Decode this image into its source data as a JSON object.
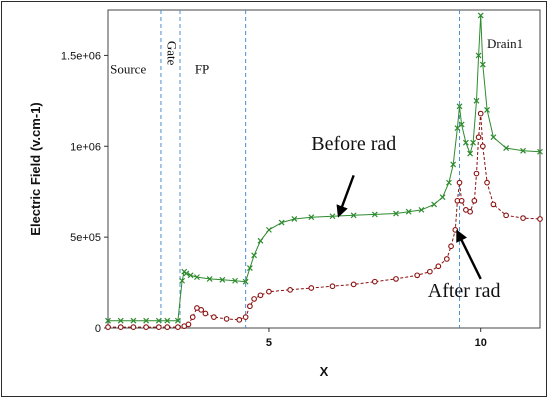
{
  "chart_data": {
    "type": "line",
    "xlabel": "X",
    "ylabel": "Electric Field (v.cm-1)",
    "xlim": [
      1.2,
      11.4
    ],
    "ylim": [
      0,
      1750000
    ],
    "x_ticks": [
      {
        "v": 5,
        "label": "5"
      },
      {
        "v": 10,
        "label": "10"
      }
    ],
    "y_ticks": [
      {
        "v": 0,
        "label": "0"
      },
      {
        "v": 500000,
        "label": "5e+05"
      },
      {
        "v": 1000000,
        "label": "1e+06"
      },
      {
        "v": 1500000,
        "label": "1.5e+06"
      }
    ],
    "vlines": [
      2.45,
      2.9,
      4.45,
      9.5
    ],
    "region_labels": [
      {
        "text": "Source",
        "x": 1.25,
        "y": 1400000,
        "rotate": false
      },
      {
        "text": "Gate",
        "x": 2.6,
        "y": 1580000,
        "rotate": true
      },
      {
        "text": "FP",
        "x": 3.25,
        "y": 1400000,
        "rotate": false
      },
      {
        "text": "Drain1",
        "x": 10.15,
        "y": 1540000,
        "rotate": false
      }
    ],
    "annotations": [
      {
        "text": "Before rad",
        "x": 6.0,
        "y": 980000,
        "arrow_from": [
          7.0,
          840000
        ],
        "arrow_to": [
          6.65,
          620000
        ]
      },
      {
        "text": "After rad",
        "x": 8.75,
        "y": 170000,
        "arrow_from": [
          10.0,
          270000
        ],
        "arrow_to": [
          9.45,
          530000
        ]
      }
    ],
    "series": [
      {
        "color": "#2e8b2e",
        "marker": "x",
        "x": [
          1.2,
          1.5,
          1.8,
          2.1,
          2.4,
          2.6,
          2.85,
          2.95,
          3.0,
          3.05,
          3.15,
          3.3,
          3.6,
          3.9,
          4.2,
          4.45,
          4.55,
          4.65,
          4.8,
          5.0,
          5.3,
          5.6,
          6.0,
          6.5,
          7.0,
          7.5,
          8.0,
          8.3,
          8.6,
          8.9,
          9.1,
          9.25,
          9.35,
          9.45,
          9.5,
          9.55,
          9.65,
          9.75,
          9.82,
          9.9,
          9.95,
          10.0,
          10.05,
          10.15,
          10.3,
          10.6,
          11.0,
          11.4
        ],
        "values": [
          40000,
          40000,
          40000,
          40000,
          40000,
          40000,
          40000,
          260000,
          310000,
          300000,
          290000,
          280000,
          270000,
          265000,
          260000,
          255000,
          330000,
          400000,
          480000,
          540000,
          580000,
          600000,
          610000,
          615000,
          620000,
          625000,
          630000,
          640000,
          650000,
          680000,
          720000,
          800000,
          900000,
          1100000,
          1220000,
          1120000,
          1020000,
          960000,
          1020000,
          1250000,
          1500000,
          1720000,
          1450000,
          1200000,
          1050000,
          990000,
          975000,
          970000
        ]
      },
      {
        "color": "#8b1010",
        "marker": "o",
        "x": [
          1.2,
          1.5,
          1.8,
          2.1,
          2.4,
          2.6,
          2.85,
          3.0,
          3.1,
          3.2,
          3.3,
          3.4,
          3.5,
          3.7,
          4.0,
          4.3,
          4.45,
          4.55,
          4.65,
          4.8,
          5.0,
          5.5,
          6.0,
          6.5,
          7.0,
          7.5,
          8.0,
          8.5,
          8.8,
          9.0,
          9.2,
          9.3,
          9.4,
          9.45,
          9.5,
          9.55,
          9.65,
          9.75,
          9.85,
          9.9,
          9.95,
          10.0,
          10.05,
          10.15,
          10.3,
          10.6,
          11.0,
          11.4
        ],
        "values": [
          5000,
          5000,
          5000,
          5000,
          5000,
          5000,
          5000,
          10000,
          20000,
          60000,
          110000,
          100000,
          80000,
          60000,
          50000,
          45000,
          60000,
          120000,
          160000,
          180000,
          200000,
          210000,
          220000,
          230000,
          240000,
          255000,
          270000,
          290000,
          310000,
          340000,
          380000,
          450000,
          540000,
          700000,
          800000,
          700000,
          650000,
          640000,
          700000,
          850000,
          1050000,
          1180000,
          1000000,
          800000,
          680000,
          620000,
          605000,
          600000
        ]
      }
    ]
  }
}
